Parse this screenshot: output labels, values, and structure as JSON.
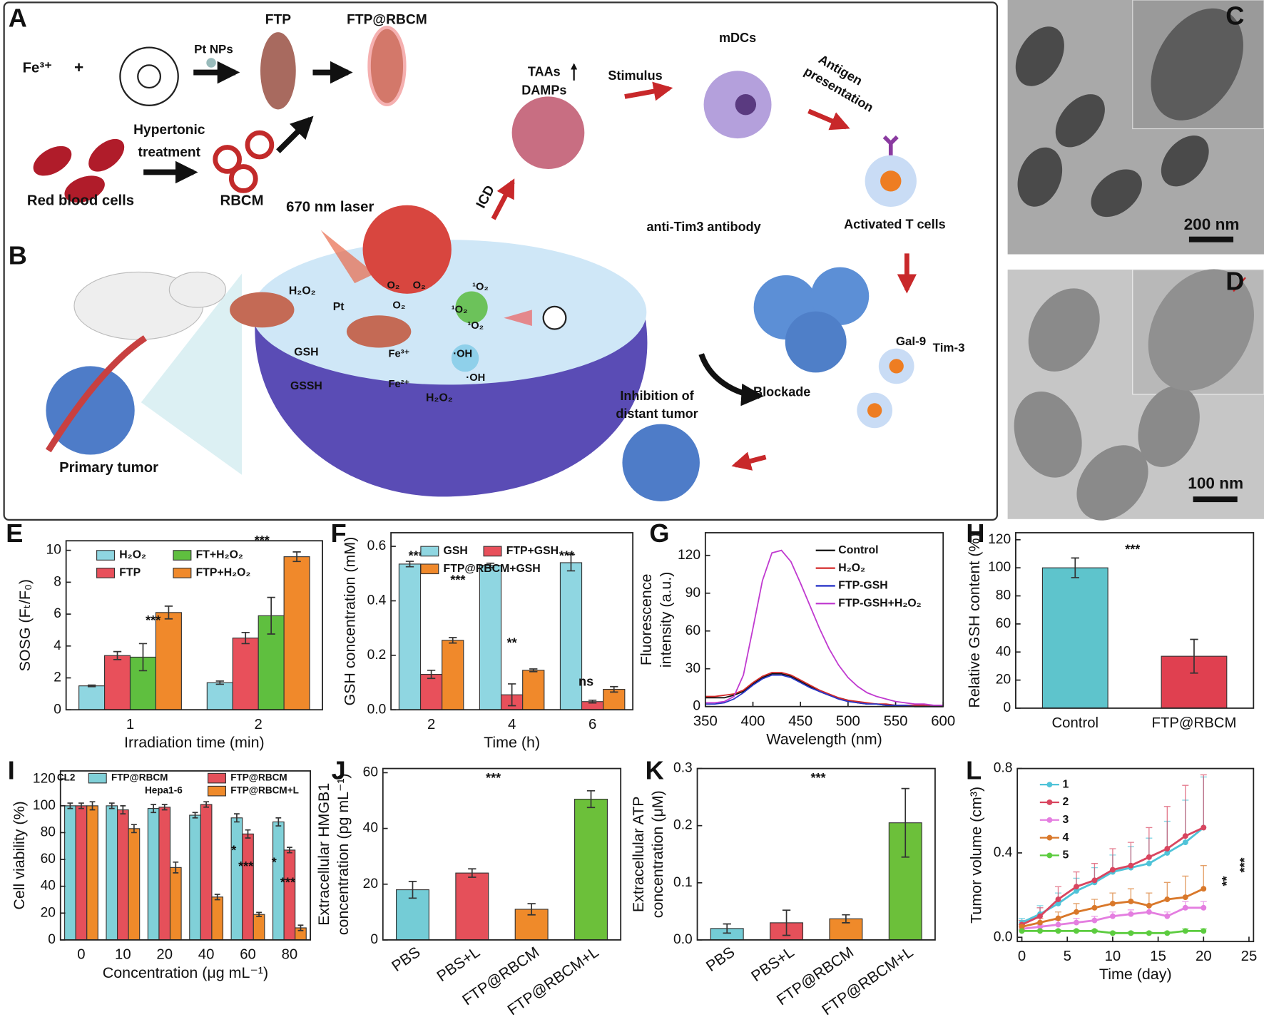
{
  "schematic": {
    "panels": [
      "A",
      "B",
      "C",
      "D"
    ],
    "labels": [
      "Fe³⁺",
      "+",
      "Pt NPs",
      "FTP",
      "FTP@RBCM",
      "Hypertonic",
      "treatment",
      "Red blood cells",
      "RBCM",
      "TAAs",
      "DAMPs",
      "Stimulus",
      "mDCs",
      "Antigen",
      "presentation",
      "ICD",
      "670 nm laser",
      "anti-Tim3 antibody",
      "Activated T cells",
      "Gal-9",
      "Tim-3",
      "Blockade",
      "Inhibition of",
      "distant tumor",
      "Primary tumor",
      "H₂O₂",
      "Pt",
      "O₂",
      "O₂",
      "O₂",
      "¹O₂",
      "¹O₂",
      "¹O₂",
      "GSH",
      "GSSH",
      "Fe³⁺",
      "Fe²⁺",
      "·OH",
      "·OH",
      "H₂O₂",
      "200 nm",
      "100 nm"
    ]
  },
  "chart_data": [
    {
      "type": "bar",
      "label": "E",
      "xlabel": "Irradiation time (min)",
      "ylabel": "SOSG (Fₜ/F₀)",
      "categories": [
        "1",
        "2"
      ],
      "ylim": [
        0,
        10.6
      ],
      "yticks": [
        0,
        2,
        4,
        6,
        8,
        10
      ],
      "series": [
        {
          "name": "H₂O₂",
          "color": "#8fd6e1",
          "values": [
            1.5,
            1.7
          ],
          "errors": [
            0.05,
            0.1
          ]
        },
        {
          "name": "FTP",
          "color": "#e8505b",
          "values": [
            3.4,
            4.5
          ],
          "errors": [
            0.25,
            0.35
          ]
        },
        {
          "name": "FT+H₂O₂",
          "color": "#5fbf3f",
          "values": [
            3.3,
            5.9
          ],
          "errors": [
            0.85,
            1.15
          ]
        },
        {
          "name": "FTP+H₂O₂",
          "color": "#f0892b",
          "values": [
            6.1,
            9.6
          ],
          "errors": [
            0.4,
            0.3
          ]
        }
      ],
      "annotations": [
        "***",
        "***"
      ]
    },
    {
      "type": "bar",
      "label": "F",
      "xlabel": "Time (h)",
      "ylabel": "GSH concentration (mM)",
      "categories": [
        "2",
        "4",
        "6"
      ],
      "ylim": [
        0,
        0.65
      ],
      "yticks": [
        {
          "value": 0,
          "label": "0.0"
        },
        0.2,
        0.4,
        0.6
      ],
      "series": [
        {
          "name": "GSH",
          "color": "#8fd6e1",
          "values": [
            0.535,
            0.53,
            0.54
          ],
          "errors": [
            0.01,
            0.008,
            0.03
          ]
        },
        {
          "name": "FTP+GSH",
          "color": "#e8505b",
          "values": [
            0.13,
            0.055,
            0.03
          ],
          "errors": [
            0.015,
            0.04,
            0.005
          ]
        },
        {
          "name": "FTP@RBCM+GSH",
          "color": "#f0892b",
          "values": [
            0.255,
            0.145,
            0.075
          ],
          "errors": [
            0.01,
            0.005,
            0.01
          ]
        }
      ],
      "annotations": [
        "***",
        "***",
        "***",
        "**",
        "***",
        "ns"
      ]
    },
    {
      "type": "line",
      "label": "G",
      "xlabel": "Wavelength (nm)",
      "ylabel": [
        "Fluorescence",
        "intensity (a.u.)"
      ],
      "xlim": [
        350,
        600
      ],
      "xticks": [
        350,
        400,
        450,
        500,
        550,
        600
      ],
      "ylim": [
        0,
        138
      ],
      "yticks": [
        0,
        30,
        60,
        90,
        120
      ],
      "x": [
        350,
        360,
        370,
        380,
        390,
        400,
        410,
        420,
        430,
        440,
        450,
        460,
        470,
        480,
        490,
        500,
        510,
        520,
        530,
        540,
        550,
        560,
        570,
        580,
        590,
        600
      ],
      "series": [
        {
          "name": "Control",
          "color": "#111111",
          "values": [
            7,
            7,
            7,
            9,
            12,
            18,
            23,
            26,
            26,
            24,
            20,
            16,
            12,
            9,
            7,
            5,
            3,
            2,
            2,
            1,
            1,
            1,
            0,
            0,
            0,
            0
          ]
        },
        {
          "name": "H₂O₂",
          "color": "#d42a2a",
          "values": [
            8,
            8,
            9,
            10,
            13,
            19,
            24,
            27,
            27,
            25,
            21,
            17,
            13,
            10,
            7,
            5,
            4,
            3,
            2,
            2,
            1,
            1,
            1,
            1,
            0,
            0
          ]
        },
        {
          "name": "FTP-GSH",
          "color": "#2a36c8",
          "values": [
            2,
            2,
            3,
            6,
            11,
            17,
            22,
            25,
            25,
            23,
            19,
            15,
            12,
            9,
            6,
            4,
            3,
            2,
            2,
            1,
            1,
            1,
            0,
            0,
            0,
            0
          ]
        },
        {
          "name": "FTP-GSH+H₂O₂",
          "color": "#c03ad0",
          "values": [
            3,
            3,
            4,
            8,
            25,
            62,
            100,
            122,
            124,
            115,
            98,
            80,
            62,
            46,
            33,
            23,
            16,
            11,
            8,
            6,
            4,
            3,
            2,
            2,
            1,
            1
          ]
        }
      ]
    },
    {
      "type": "bar",
      "label": "H",
      "ylabel": "Relative GSH content (%)",
      "categories": [
        "Control",
        "FTP@RBCM"
      ],
      "ylim": [
        0,
        125
      ],
      "yticks": [
        0,
        20,
        40,
        60,
        80,
        100,
        120
      ],
      "values": [
        100,
        37
      ],
      "errors": [
        7,
        12
      ],
      "colors": [
        "#5ec4cc",
        "#e04050"
      ],
      "annotations": [
        "***"
      ]
    },
    {
      "type": "bar",
      "label": "I",
      "xlabel": "Concentration (μg mL⁻¹)",
      "ylabel": "Cell viability (%)",
      "categories": [
        "0",
        "10",
        "20",
        "40",
        "60",
        "80"
      ],
      "ylim": [
        0,
        126
      ],
      "yticks": [
        0,
        20,
        40,
        60,
        80,
        100,
        120
      ],
      "series": [
        {
          "name": "FTP@RBCM",
          "color": "#80d0d8",
          "values": [
            100,
            100,
            98,
            93,
            91,
            88
          ],
          "errors": [
            2,
            2,
            3,
            2,
            3,
            3
          ]
        },
        {
          "name": "FTP@RBCM",
          "color": "#e5505a",
          "values": [
            100,
            97,
            99,
            101,
            79,
            67
          ],
          "errors": [
            2,
            3,
            2,
            2,
            3,
            2
          ]
        },
        {
          "name": "FTP@RBCM+L",
          "color": "#ef8a2a",
          "values": [
            100,
            83,
            54,
            32,
            19,
            9
          ],
          "errors": [
            3,
            3,
            4,
            2,
            1.5,
            2
          ]
        }
      ],
      "annotations": [
        "CL2",
        "Hepa1-6",
        "*",
        "***",
        "*",
        "***"
      ]
    },
    {
      "type": "bar",
      "label": "J",
      "ylabel": [
        "Extracellular HMGB1",
        "concentration (pg mL⁻¹)"
      ],
      "categories": [
        "PBS",
        "PBS+L",
        "FTP@RBCM",
        "FTP@RBCM+L"
      ],
      "ylim": [
        0,
        61.5
      ],
      "yticks": [
        0,
        20,
        40,
        60
      ],
      "values": [
        18,
        24,
        11,
        50.5
      ],
      "errors": [
        3,
        1.5,
        2,
        3
      ],
      "colors": [
        "#74ccd6",
        "#e5505a",
        "#ef8a2a",
        "#6cc03a"
      ],
      "annotations": [
        "***"
      ]
    },
    {
      "type": "bar",
      "label": "K",
      "ylabel": [
        "Extracellular ATP",
        "concentration (μM)"
      ],
      "categories": [
        "PBS",
        "PBS+L",
        "FTP@RBCM",
        "FTP@RBCM+L"
      ],
      "ylim": [
        0,
        0.3
      ],
      "yticks": [
        {
          "value": 0,
          "label": "0.0"
        },
        0.1,
        0.2,
        0.3
      ],
      "values": [
        0.02,
        0.03,
        0.037,
        0.205
      ],
      "errors": [
        0.008,
        0.022,
        0.007,
        0.06
      ],
      "colors": [
        "#74ccd6",
        "#e5505a",
        "#ef8a2a",
        "#6cc03a"
      ],
      "annotations": [
        "***"
      ]
    },
    {
      "type": "line",
      "label": "L",
      "xlabel": "Time (day)",
      "ylabel": "Tumor volume (cm³)",
      "xlim": [
        -0.5,
        25.5
      ],
      "xticks": [
        0,
        5,
        10,
        15,
        20,
        25
      ],
      "ylim": [
        -0.02,
        0.8
      ],
      "yticks": [
        {
          "value": 0,
          "label": "0.0"
        },
        0.4,
        0.8
      ],
      "x": [
        0,
        2,
        4,
        6,
        8,
        10,
        12,
        14,
        16,
        18,
        20
      ],
      "series": [
        {
          "name": "1",
          "color": "#4fc3d8",
          "values": [
            0.07,
            0.11,
            0.16,
            0.22,
            0.26,
            0.31,
            0.33,
            0.35,
            0.4,
            0.45,
            0.52
          ],
          "errors": [
            0.02,
            0.04,
            0.05,
            0.06,
            0.07,
            0.08,
            0.1,
            0.12,
            0.15,
            0.2,
            0.24
          ]
        },
        {
          "name": "2",
          "color": "#d9455f",
          "values": [
            0.06,
            0.1,
            0.18,
            0.24,
            0.27,
            0.32,
            0.34,
            0.38,
            0.42,
            0.48,
            0.52
          ],
          "errors": [
            0.02,
            0.04,
            0.06,
            0.07,
            0.08,
            0.1,
            0.11,
            0.14,
            0.2,
            0.24,
            0.25
          ]
        },
        {
          "name": "3",
          "color": "#e47ee0",
          "values": [
            0.04,
            0.05,
            0.06,
            0.07,
            0.08,
            0.1,
            0.11,
            0.12,
            0.1,
            0.14,
            0.14
          ],
          "errors": [
            0.01,
            0.01,
            0.02,
            0.02,
            0.02,
            0.02,
            0.02,
            0.03,
            0.02,
            0.03,
            0.03
          ]
        },
        {
          "name": "4",
          "color": "#d9782a",
          "values": [
            0.05,
            0.07,
            0.09,
            0.12,
            0.14,
            0.16,
            0.17,
            0.15,
            0.18,
            0.19,
            0.23
          ],
          "errors": [
            0.01,
            0.02,
            0.03,
            0.04,
            0.04,
            0.05,
            0.06,
            0.06,
            0.08,
            0.1,
            0.11
          ]
        },
        {
          "name": "5",
          "color": "#5ccc3f",
          "values": [
            0.03,
            0.03,
            0.03,
            0.03,
            0.03,
            0.02,
            0.02,
            0.02,
            0.02,
            0.03,
            0.03
          ],
          "errors": [
            0.005,
            0.005,
            0.005,
            0.005,
            0.005,
            0.005,
            0.005,
            0.005,
            0.005,
            0.01,
            0.01
          ]
        }
      ],
      "annotations": [
        "**",
        "***"
      ]
    }
  ]
}
